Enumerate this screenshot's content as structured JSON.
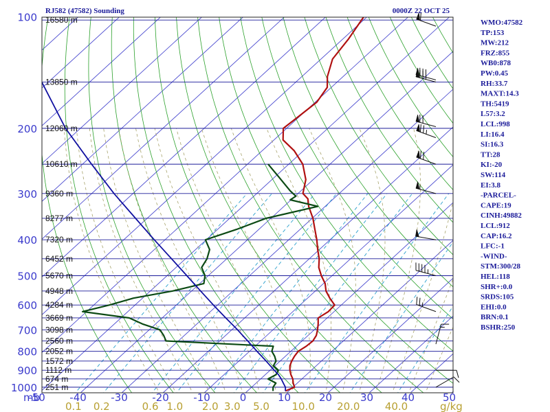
{
  "chart_data": {
    "type": "skew-t",
    "title_left": "RJ582 (47582) Sounding",
    "title_right": "0000Z 22 OCT 25",
    "xlabel_pressure_unit": "mb",
    "mixing_ratio_unit": "g/kg",
    "pressure_levels": [
      100,
      200,
      300,
      400,
      500,
      600,
      700,
      800,
      900,
      1000
    ],
    "temperature_ticks": [
      "-50",
      "-40",
      "-30",
      "-20",
      "-10",
      "0",
      "10",
      "20",
      "30",
      "40",
      "50"
    ],
    "mixing_ratio_ticks": [
      "0.1",
      "0.2",
      "0.6",
      "1.0",
      "2.0",
      "3.0",
      "5.0",
      "10.0",
      "20.0",
      "40.0"
    ],
    "heights": [
      {
        "p": 102,
        "label": "16580 m"
      },
      {
        "p": 150,
        "label": "13850 m"
      },
      {
        "p": 200,
        "label": "12060 m"
      },
      {
        "p": 250,
        "label": "10610 m"
      },
      {
        "p": 300,
        "label": "9360 m"
      },
      {
        "p": 350,
        "label": "8277 m"
      },
      {
        "p": 400,
        "label": "7320 m"
      },
      {
        "p": 450,
        "label": "6452 m"
      },
      {
        "p": 500,
        "label": "5670 m"
      },
      {
        "p": 550,
        "label": "4948 m"
      },
      {
        "p": 600,
        "label": "4284 m"
      },
      {
        "p": 650,
        "label": "3669 m"
      },
      {
        "p": 700,
        "label": "3098 m"
      },
      {
        "p": 750,
        "label": "2560 m"
      },
      {
        "p": 800,
        "label": "2052 m"
      },
      {
        "p": 850,
        "label": "1572 m"
      },
      {
        "p": 900,
        "label": "1112 m"
      },
      {
        "p": 950,
        "label": "674 m"
      },
      {
        "p": 1000,
        "label": "251 m"
      }
    ],
    "series": [
      {
        "name": "temperature",
        "color": "#b01010",
        "points": [
          [
            1024,
            9.2
          ],
          [
            1000,
            10.4
          ],
          [
            975,
            9.0
          ],
          [
            950,
            7.8
          ],
          [
            925,
            6.2
          ],
          [
            900,
            4.8
          ],
          [
            875,
            3.6
          ],
          [
            850,
            2.8
          ],
          [
            825,
            2.2
          ],
          [
            800,
            1.8
          ],
          [
            775,
            2.4
          ],
          [
            750,
            2.6
          ],
          [
            725,
            2.0
          ],
          [
            700,
            0.8
          ],
          [
            675,
            -0.6
          ],
          [
            650,
            -2.2
          ],
          [
            625,
            -1.4
          ],
          [
            600,
            -1.6
          ],
          [
            575,
            -4.6
          ],
          [
            550,
            -7.4
          ],
          [
            525,
            -9.6
          ],
          [
            500,
            -12.6
          ],
          [
            475,
            -15.4
          ],
          [
            450,
            -17.6
          ],
          [
            425,
            -20.4
          ],
          [
            400,
            -23.2
          ],
          [
            375,
            -26.4
          ],
          [
            350,
            -29.8
          ],
          [
            325,
            -34.0
          ],
          [
            310,
            -36.2
          ],
          [
            300,
            -38.8
          ],
          [
            275,
            -41.8
          ],
          [
            250,
            -46.6
          ],
          [
            230,
            -52.2
          ],
          [
            215,
            -57.8
          ],
          [
            200,
            -60.8
          ],
          [
            185,
            -60.2
          ],
          [
            170,
            -59.6
          ],
          [
            155,
            -61.0
          ],
          [
            145,
            -63.8
          ],
          [
            130,
            -67.2
          ],
          [
            115,
            -68.6
          ],
          [
            100,
            -70.8
          ]
        ]
      },
      {
        "name": "dewpoint",
        "color": "#0c4a14",
        "points": [
          [
            1024,
            6.2
          ],
          [
            1000,
            5.2
          ],
          [
            975,
            4.8
          ],
          [
            950,
            1.8
          ],
          [
            925,
            2.6
          ],
          [
            900,
            2.0
          ],
          [
            875,
            -0.4
          ],
          [
            850,
            -1.0
          ],
          [
            825,
            -2.6
          ],
          [
            800,
            -4.6
          ],
          [
            775,
            -5.6
          ],
          [
            750,
            -33.0
          ],
          [
            725,
            -35.0
          ],
          [
            700,
            -37.4
          ],
          [
            675,
            -43.2
          ],
          [
            650,
            -48.0
          ],
          [
            625,
            -61.0
          ],
          [
            600,
            -56.2
          ],
          [
            575,
            -52.2
          ],
          [
            550,
            -44.6
          ],
          [
            525,
            -39.0
          ],
          [
            500,
            -40.8
          ],
          [
            475,
            -43.8
          ],
          [
            450,
            -44.8
          ],
          [
            425,
            -46.6
          ],
          [
            400,
            -50.2
          ],
          [
            375,
            -45.4
          ],
          [
            350,
            -41.2
          ],
          [
            325,
            -31.8
          ],
          [
            312,
            -40.2
          ],
          [
            305,
            -39.8
          ],
          [
            295,
            -42.6
          ],
          [
            270,
            -49.2
          ],
          [
            250,
            -55.0
          ]
        ]
      },
      {
        "name": "parcel",
        "color": "#1010a0",
        "points": [
          [
            1024,
            9.2
          ],
          [
            1000,
            8.2
          ],
          [
            975,
            6.6
          ],
          [
            950,
            5.0
          ],
          [
            925,
            3.2
          ],
          [
            900,
            1.0
          ],
          [
            850,
            -3.4
          ],
          [
            800,
            -8.2
          ],
          [
            750,
            -13.2
          ],
          [
            700,
            -18.6
          ],
          [
            650,
            -24.6
          ],
          [
            600,
            -31.0
          ],
          [
            550,
            -37.8
          ],
          [
            500,
            -45.2
          ],
          [
            450,
            -53.4
          ],
          [
            400,
            -62.6
          ],
          [
            350,
            -72.8
          ],
          [
            300,
            -84.6
          ],
          [
            250,
            -97.8
          ],
          [
            200,
            -113.6
          ],
          [
            150,
            -131.6
          ],
          [
            100,
            -155.8
          ]
        ]
      }
    ],
    "wind_barbs": [
      {
        "p": 106,
        "dir": 290,
        "spd": 60
      },
      {
        "p": 148,
        "dir": 285,
        "spd": 80
      },
      {
        "p": 150,
        "dir": 285,
        "spd": 75
      },
      {
        "p": 198,
        "dir": 285,
        "spd": 70
      },
      {
        "p": 212,
        "dir": 290,
        "spd": 75
      },
      {
        "p": 250,
        "dir": 290,
        "spd": 70
      },
      {
        "p": 300,
        "dir": 285,
        "spd": 55
      },
      {
        "p": 400,
        "dir": 280,
        "spd": 50
      },
      {
        "p": 500,
        "dir": 285,
        "spd": 45
      },
      {
        "p": 625,
        "dir": 290,
        "spd": 25
      },
      {
        "p": 765,
        "dir": 15,
        "spd": 15
      },
      {
        "p": 900,
        "dir": 90,
        "spd": 10
      },
      {
        "p": 1000,
        "dir": 60,
        "spd": 10
      }
    ],
    "xlim": [
      -50,
      50
    ],
    "ylim": [
      1050,
      100
    ]
  },
  "indices": [
    "WMO:47582",
    "TP:153",
    "MW:212",
    "FRZ:855",
    "WB0:878",
    "PW:0.45",
    "RH:33.7",
    "MAXT:14.3",
    "TH:5419",
    "L57:3.2",
    "LCL:998",
    "LI:16.4",
    "SI:16.3",
    "TT:28",
    "KI:-20",
    "SW:114",
    "EI:3.8",
    "-PARCEL-",
    "CAPE:19",
    "CINH:49882",
    "LCL:912",
    "CAP:16.2",
    "LFC:-1",
    "-WIND-",
    "STM:300/28",
    "HEL:118",
    "SHR+:0.0",
    "SRDS:105",
    "EHI:0.0",
    "BRN:0.1",
    "BSHR:250"
  ]
}
